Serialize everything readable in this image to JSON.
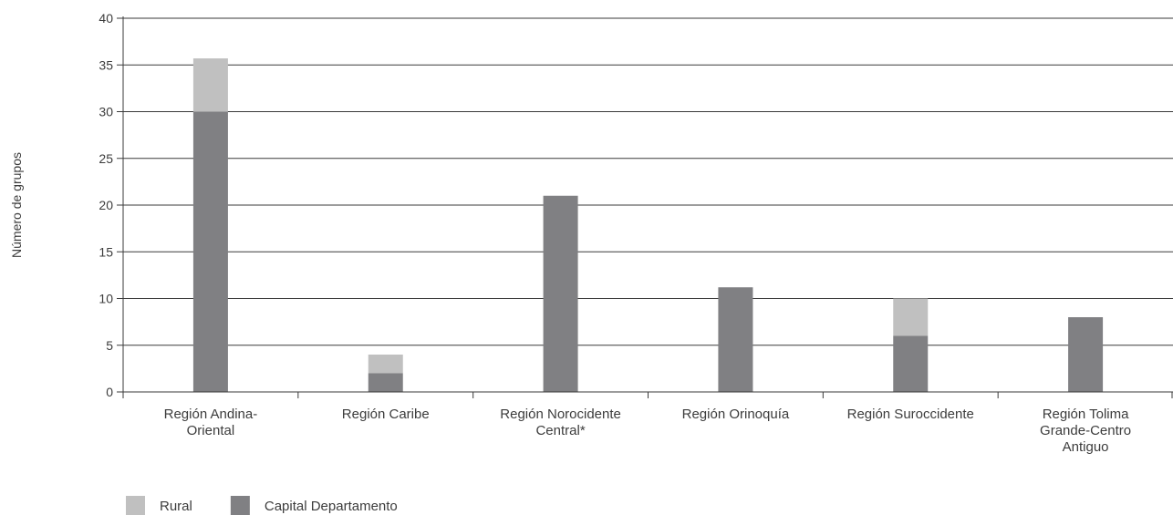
{
  "chart_data": {
    "type": "bar",
    "stacked": true,
    "categories": [
      [
        "Región Andina-",
        "Oriental"
      ],
      [
        "Región Caribe"
      ],
      [
        "Región Norocidente",
        "Central*"
      ],
      [
        "Región Orinoquía"
      ],
      [
        "Región Suroccidente"
      ],
      [
        "Región Tolima",
        "Grande-Centro",
        "Antiguo"
      ]
    ],
    "series": [
      {
        "name": "Capital Departamento",
        "color": "#808083",
        "values": [
          30,
          2,
          21,
          11.2,
          6,
          8
        ]
      },
      {
        "name": "Rural",
        "color": "#c0c0c0",
        "values": [
          5.7,
          2,
          0,
          0,
          4,
          0
        ]
      }
    ],
    "title": "",
    "xlabel": "",
    "ylabel": "Número de grupos",
    "ylim": [
      0,
      40
    ],
    "yticks": [
      0,
      5,
      10,
      15,
      20,
      25,
      30,
      35,
      40
    ],
    "grid": true,
    "legend_position": "bottom-left",
    "legend_order": [
      "Rural",
      "Capital Departamento"
    ]
  }
}
